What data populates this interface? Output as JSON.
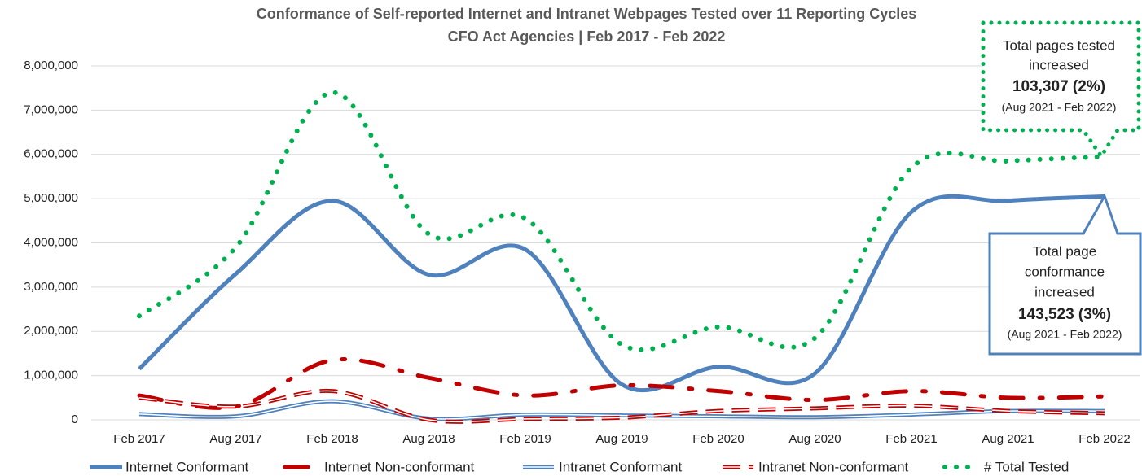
{
  "chart_data": {
    "type": "line",
    "title": "Conformance of Self-reported Internet and Intranet Webpages Tested over 11 Reporting Cycles",
    "subtitle": "CFO Act Agencies | Feb 2017 - Feb 2022",
    "categories": [
      "Feb 2017",
      "Aug 2017",
      "Feb 2018",
      "Aug 2018",
      "Feb 2019",
      "Aug 2019",
      "Feb 2020",
      "Aug 2020",
      "Feb 2021",
      "Aug 2021",
      "Feb 2022"
    ],
    "series": [
      {
        "name": "Internet Conformant",
        "color": "#4f81bd",
        "style": "solid",
        "values": [
          1150000,
          3300000,
          4950000,
          3280000,
          3850000,
          800000,
          1200000,
          1050000,
          4700000,
          4950000,
          5050000
        ]
      },
      {
        "name": "Internet Non-conformant",
        "color": "#c00000",
        "style": "dashdot",
        "values": [
          550000,
          300000,
          1350000,
          950000,
          550000,
          780000,
          650000,
          450000,
          650000,
          500000,
          530000
        ]
      },
      {
        "name": "Intranet Conformant",
        "color": "#4f81bd",
        "style": "double",
        "values": [
          130000,
          80000,
          420000,
          30000,
          120000,
          100000,
          80000,
          60000,
          120000,
          200000,
          200000
        ]
      },
      {
        "name": "Intranet Non-conformant",
        "color": "#c00000",
        "style": "double-dash",
        "values": [
          500000,
          300000,
          650000,
          0,
          20000,
          50000,
          200000,
          260000,
          320000,
          200000,
          150000
        ]
      },
      {
        "name": "# Total Tested",
        "color": "#00b050",
        "style": "dotted",
        "values": [
          2350000,
          3900000,
          7400000,
          4200000,
          4550000,
          1700000,
          2100000,
          1850000,
          5700000,
          5850000,
          5950000
        ]
      }
    ],
    "ylim": [
      0,
      8000000
    ],
    "yticks": [
      0,
      {
        "value": 1000000,
        "label": "1,000,000"
      },
      {
        "value": 2000000,
        "label": "2,000,000"
      },
      {
        "value": 3000000,
        "label": "3,000,000"
      },
      {
        "value": 4000000,
        "label": "4,000,000"
      },
      {
        "value": 5000000,
        "label": "5,000,000"
      },
      {
        "value": 6000000,
        "label": "6,000,000"
      },
      {
        "value": 7000000,
        "label": "7,000,000"
      },
      {
        "value": 8000000,
        "label": "8,000,000"
      }
    ],
    "grid": true,
    "legend": "bottom",
    "annotations": [
      {
        "lines": [
          "Total pages tested",
          "increased",
          "103,307 (2%)",
          "(Aug 2021 - Feb 2022)"
        ]
      },
      {
        "lines": [
          "Total page",
          "conformance",
          "increased",
          "143,523 (3%)",
          "(Aug 2021 - Feb 2022)"
        ]
      }
    ]
  }
}
